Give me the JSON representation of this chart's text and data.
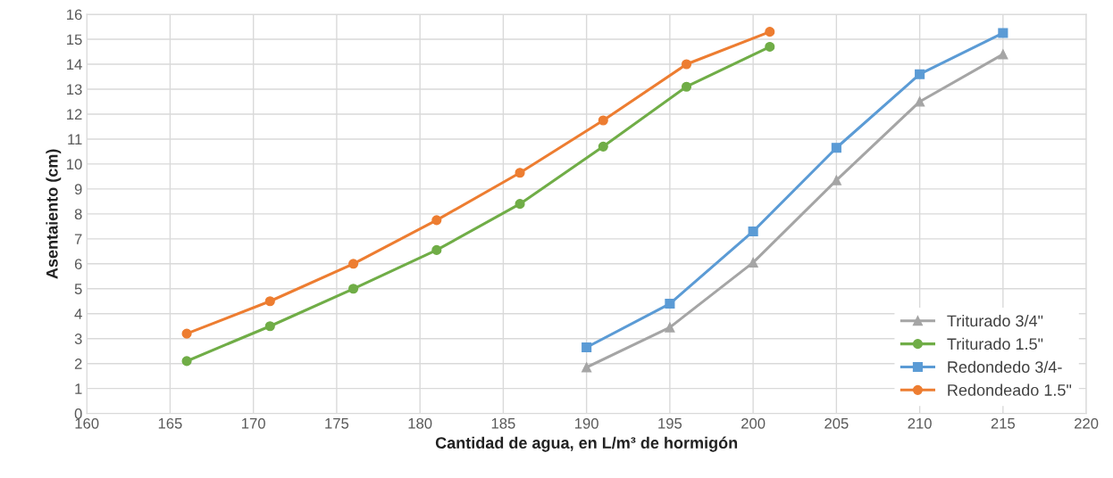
{
  "chart_data": {
    "type": "line",
    "xlabel": "Cantidad de agua, en L/m³ de hormigón",
    "ylabel": "Asentaiento (cm)",
    "xlim": [
      160,
      220
    ],
    "xticks": [
      160,
      165,
      170,
      175,
      180,
      185,
      190,
      195,
      200,
      205,
      210,
      215,
      220
    ],
    "ylim": [
      0,
      16
    ],
    "yticks": [
      0,
      1,
      2,
      3,
      4,
      5,
      6,
      7,
      8,
      9,
      10,
      11,
      12,
      13,
      14,
      15,
      16
    ],
    "grid": true,
    "legend": "bottom right",
    "line_style": "solid",
    "series": [
      {
        "name": "Triturado 3/4\"",
        "color": "#a5a5a5",
        "marker": "triangle",
        "x": [
          190,
          195,
          200,
          205,
          210,
          215
        ],
        "values": [
          1.85,
          3.45,
          6.05,
          9.35,
          12.5,
          14.4
        ]
      },
      {
        "name": "Triturado 1.5\"",
        "color": "#70ad47",
        "marker": "circle",
        "x": [
          166,
          171,
          176,
          181,
          186,
          191,
          196,
          201
        ],
        "values": [
          2.1,
          3.5,
          5.0,
          6.55,
          8.4,
          10.7,
          13.1,
          14.7
        ]
      },
      {
        "name": "Redondedo 3/4-",
        "color": "#5b9bd5",
        "marker": "square",
        "x": [
          190,
          195,
          200,
          205,
          210,
          215
        ],
        "values": [
          2.65,
          4.4,
          7.3,
          10.65,
          13.6,
          15.25
        ]
      },
      {
        "name": "Redondeado 1.5\"",
        "color": "#ed7d31",
        "marker": "circle",
        "x": [
          166,
          171,
          176,
          181,
          186,
          191,
          196,
          201
        ],
        "values": [
          3.2,
          4.5,
          6.0,
          7.75,
          9.65,
          11.75,
          14.0,
          15.3
        ]
      }
    ]
  }
}
